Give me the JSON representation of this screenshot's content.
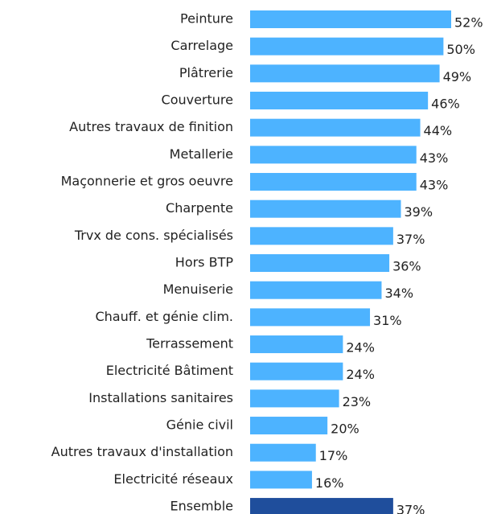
{
  "chart_data": {
    "type": "hbar",
    "categories": [
      "Peinture",
      "Carrelage",
      "Plâtrerie",
      "Couverture",
      "Autres travaux de finition",
      "Metallerie",
      "Maçonnerie et gros oeuvre",
      "Charpente",
      "Trvx de cons. spécialisés",
      "Hors BTP",
      "Menuiserie",
      "Chauff. et génie clim.",
      "Terrassement",
      "Electricité Bâtiment",
      "Installations sanitaires",
      "Génie civil",
      "Autres travaux d'installation",
      "Electricité réseaux",
      "Ensemble"
    ],
    "values": [
      52,
      50,
      49,
      46,
      44,
      43,
      43,
      39,
      37,
      36,
      34,
      31,
      24,
      24,
      23,
      20,
      17,
      16,
      37
    ],
    "value_labels": [
      "52%",
      "50%",
      "49%",
      "46%",
      "44%",
      "43%",
      "43%",
      "39%",
      "37%",
      "36%",
      "34%",
      "31%",
      "24%",
      "24%",
      "23%",
      "20%",
      "17%",
      "16%",
      "37%"
    ],
    "colors": [
      "#4db3ff",
      "#4db3ff",
      "#4db3ff",
      "#4db3ff",
      "#4db3ff",
      "#4db3ff",
      "#4db3ff",
      "#4db3ff",
      "#4db3ff",
      "#4db3ff",
      "#4db3ff",
      "#4db3ff",
      "#4db3ff",
      "#4db3ff",
      "#4db3ff",
      "#4db3ff",
      "#4db3ff",
      "#4db3ff",
      "#1f4e9c"
    ]
  }
}
